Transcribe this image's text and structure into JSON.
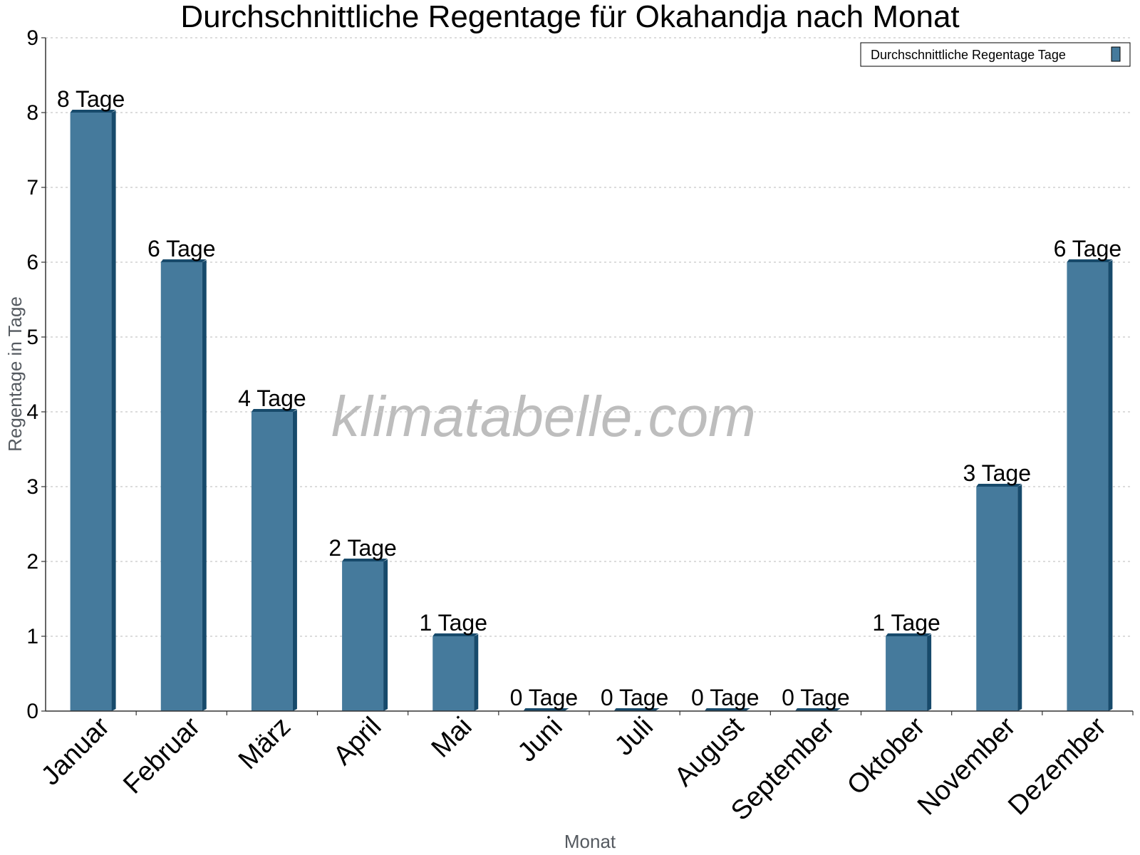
{
  "chart_data": {
    "type": "bar",
    "title": "Durchschnittliche Regentage für Okahandja nach Monat",
    "xlabel": "Monat",
    "ylabel": "Regentage in Tage",
    "ylim": [
      0,
      9
    ],
    "yticks": [
      0,
      1,
      2,
      3,
      4,
      5,
      6,
      7,
      8,
      9
    ],
    "grid": true,
    "legend_position": "top-right",
    "categories": [
      "Januar",
      "Februar",
      "März",
      "April",
      "Mai",
      "Juni",
      "Juli",
      "August",
      "September",
      "Oktober",
      "November",
      "Dezember"
    ],
    "series": [
      {
        "name": "Durchschnittliche Regentage Tage",
        "values": [
          8,
          6,
          4,
          2,
          1,
          0,
          0,
          0,
          0,
          1,
          3,
          6
        ],
        "labels": [
          "8 Tage",
          "6 Tage",
          "4 Tage",
          "2 Tage",
          "1 Tage",
          "0 Tage",
          "0 Tage",
          "0 Tage",
          "0 Tage",
          "1 Tage",
          "3 Tage",
          "6 Tage"
        ],
        "color": "#457a9c",
        "side_color": "#174a6b"
      }
    ]
  },
  "watermark": "klimatabelle.com"
}
